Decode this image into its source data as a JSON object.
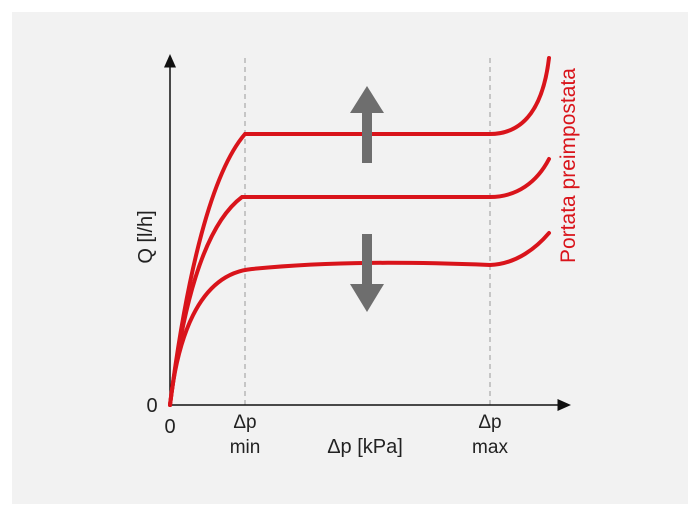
{
  "diagram": {
    "y_axis_label": "Q [l/h]",
    "x_axis_label": "Δp [kPa]",
    "origin_x_label": "0",
    "origin_y_label": "0",
    "marker_min": {
      "top": "Δp",
      "bottom": "min"
    },
    "marker_max": {
      "top": "Δp",
      "bottom": "max"
    },
    "curves_label": "Portata preimpostata",
    "arrow_up": "arrow-up-icon",
    "arrow_down": "arrow-down-icon",
    "colors": {
      "background": "#f2f2f2",
      "curve": "#d9141b",
      "arrow": "#6e6e6e",
      "axis": "#111111",
      "guide": "#9a9a9a"
    }
  }
}
